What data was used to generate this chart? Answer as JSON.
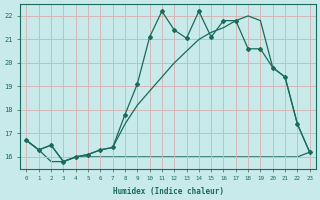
{
  "xlabel": "Humidex (Indice chaleur)",
  "background_color": "#c8eaea",
  "grid_color": "#d4b8b8",
  "line_color": "#1a6b5a",
  "xlim": [
    -0.5,
    23.5
  ],
  "ylim": [
    15.5,
    22.5
  ],
  "xticks": [
    0,
    1,
    2,
    3,
    4,
    5,
    6,
    7,
    8,
    9,
    10,
    11,
    12,
    13,
    14,
    15,
    16,
    17,
    18,
    19,
    20,
    21,
    22,
    23
  ],
  "yticks": [
    16,
    17,
    18,
    19,
    20,
    21,
    22
  ],
  "line1_x": [
    0,
    1,
    2,
    3,
    4,
    5,
    6,
    7,
    8,
    9,
    10,
    11,
    12,
    13,
    14,
    15,
    16,
    17,
    18,
    19,
    20,
    21,
    22,
    23
  ],
  "line1_y": [
    16.7,
    16.3,
    16.5,
    15.8,
    16.0,
    16.1,
    16.3,
    16.4,
    17.8,
    19.1,
    21.1,
    22.2,
    21.4,
    21.05,
    22.2,
    21.1,
    21.8,
    21.8,
    20.6,
    20.6,
    19.8,
    19.4,
    17.4,
    16.2
  ],
  "line2_x": [
    0,
    1,
    2,
    3,
    4,
    5,
    6,
    7,
    8,
    9,
    10,
    11,
    12,
    13,
    14,
    15,
    16,
    17,
    18,
    19,
    20,
    21,
    22,
    23
  ],
  "line2_y": [
    16.7,
    16.3,
    16.5,
    15.8,
    16.0,
    16.1,
    16.3,
    16.4,
    17.4,
    18.2,
    18.8,
    19.4,
    20.0,
    20.5,
    21.0,
    21.3,
    21.5,
    21.8,
    22.0,
    21.8,
    19.8,
    19.4,
    17.4,
    16.2
  ],
  "line3_x": [
    0,
    1,
    2,
    3,
    4,
    5,
    6,
    7,
    8,
    9,
    10,
    11,
    12,
    13,
    14,
    15,
    16,
    17,
    18,
    19,
    20,
    21,
    22,
    23
  ],
  "line3_y": [
    16.7,
    16.3,
    15.8,
    15.8,
    16.0,
    16.0,
    16.0,
    16.0,
    16.0,
    16.0,
    16.0,
    16.0,
    16.0,
    16.0,
    16.0,
    16.0,
    16.0,
    16.0,
    16.0,
    16.0,
    16.0,
    16.0,
    16.0,
    16.2
  ]
}
